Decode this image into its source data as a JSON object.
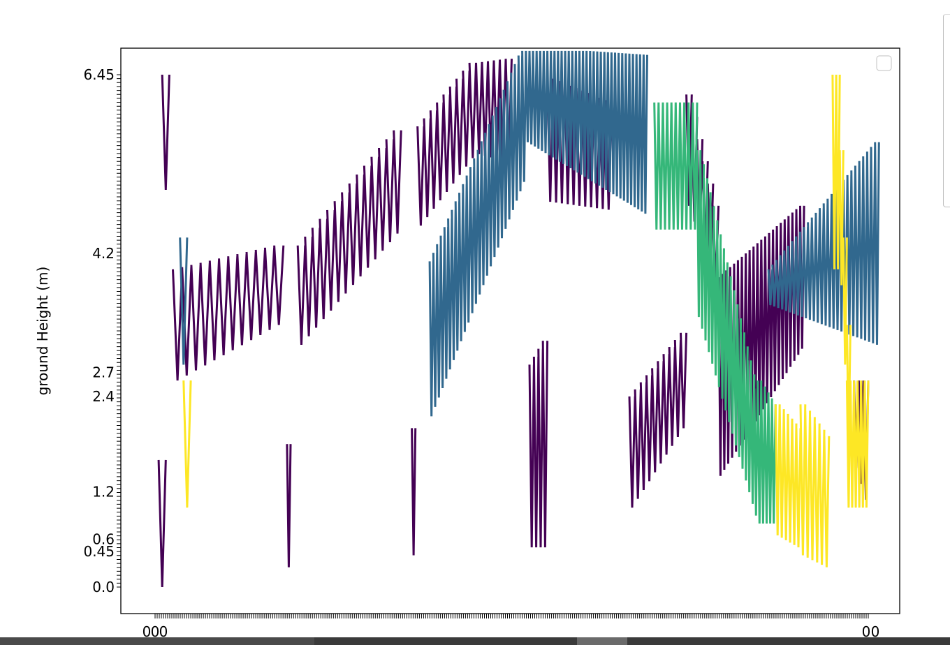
{
  "chart_data": {
    "type": "line",
    "title": "",
    "xlabel": "",
    "ylabel": "ground Height (m)",
    "legend": {
      "placement": "top-right",
      "entries": []
    },
    "grid": false,
    "xlim": [
      0,
      1000
    ],
    "ylim": [
      -0.2,
      6.75
    ],
    "x_tick_labels": [
      "0",
      "0",
      "0",
      "0",
      "0"
    ],
    "y_tick_labels_legible": [
      "6.45",
      "4.2",
      "2.7",
      "2.4",
      "1.2",
      "0.6",
      "0.45",
      "0.0"
    ],
    "colors": {
      "purple": "#440154",
      "teal": "#31688e",
      "green": "#35b779",
      "yellow": "#fde725"
    },
    "series": [
      {
        "color": "#440154",
        "segments": [
          {
            "x0": 5,
            "x1": 15,
            "top": 1.6,
            "bottom": 0.0,
            "n": 1
          },
          {
            "x0": 10,
            "x1": 20,
            "top": 6.45,
            "bottom": 5.0,
            "n": 1
          },
          {
            "x0": 25,
            "x1": 180,
            "top": [
              4.0,
              4.3
            ],
            "bottom": [
              2.6,
              3.3
            ],
            "n": 12
          },
          {
            "x0": 185,
            "x1": 190,
            "top": 1.8,
            "bottom": 0.25,
            "n": 1
          },
          {
            "x0": 200,
            "x1": 345,
            "top": [
              4.3,
              5.75
            ],
            "bottom": [
              3.05,
              4.45
            ],
            "n": 14
          },
          {
            "x0": 360,
            "x1": 365,
            "top": 2.0,
            "bottom": 0.4,
            "n": 1
          },
          {
            "x0": 368,
            "x1": 450,
            "top": [
              5.8,
              6.6
            ],
            "bottom": [
              4.55,
              5.4
            ],
            "n": 9
          },
          {
            "x0": 450,
            "x1": 500,
            "top": [
              6.6,
              6.65
            ],
            "bottom": [
              5.45,
              5.35
            ],
            "n": 6
          },
          {
            "x0": 525,
            "x1": 550,
            "top": [
              2.8,
              3.1
            ],
            "bottom": 0.5,
            "n": 4
          },
          {
            "x0": 550,
            "x1": 640,
            "top": [
              6.4,
              6.1
            ],
            "bottom": [
              4.85,
              4.75
            ],
            "n": 11
          },
          {
            "x0": 665,
            "x1": 745,
            "top": [
              2.4,
              3.2
            ],
            "bottom": [
              1.0,
              2.0
            ],
            "n": 10
          },
          {
            "x0": 745,
            "x1": 790,
            "top": [
              6.2,
              4.8
            ],
            "bottom": [
              4.8,
              3.8
            ],
            "n": 6
          },
          {
            "x0": 790,
            "x1": 910,
            "top": [
              3.9,
              4.8
            ],
            "bottom": [
              1.4,
              3.0
            ],
            "n": 22
          },
          {
            "x0": 980,
            "x1": 1000,
            "top": 2.6,
            "bottom": [
              1.5,
              1.1
            ],
            "n": 3
          }
        ]
      },
      {
        "color": "#31688e",
        "segments": [
          {
            "x0": 35,
            "x1": 45,
            "top": 4.4,
            "bottom": 2.8,
            "n": 1
          },
          {
            "x0": 385,
            "x1": 520,
            "top": [
              4.1,
              6.8
            ],
            "bottom": [
              2.15,
              5.1
            ],
            "n": 26
          },
          {
            "x0": 520,
            "x1": 690,
            "top": [
              6.8,
              6.7
            ],
            "bottom": [
              5.6,
              4.7
            ],
            "n": 34
          },
          {
            "x0": 860,
            "x1": 1015,
            "top": [
              4.0,
              5.6
            ],
            "bottom": [
              3.55,
              3.05
            ],
            "n": 28
          }
        ]
      },
      {
        "color": "#35b779",
        "segments": [
          {
            "x0": 700,
            "x1": 760,
            "top": 6.1,
            "bottom": 4.5,
            "n": 10
          },
          {
            "x0": 760,
            "x1": 845,
            "top": [
              5.5,
              2.5
            ],
            "bottom": [
              3.4,
              0.9
            ],
            "n": 18
          },
          {
            "x0": 845,
            "x1": 870,
            "top": [
              2.6,
              2.3
            ],
            "bottom": 0.8,
            "n": 5
          }
        ]
      },
      {
        "color": "#fde725",
        "segments": [
          {
            "x0": 40,
            "x1": 50,
            "top": 2.6,
            "bottom": 1.0,
            "n": 1
          },
          {
            "x0": 870,
            "x1": 905,
            "top": [
              2.3,
              2.0
            ],
            "bottom": [
              0.65,
              0.5
            ],
            "n": 6
          },
          {
            "x0": 905,
            "x1": 945,
            "top": [
              2.3,
              1.9
            ],
            "bottom": [
              0.4,
              0.25
            ],
            "n": 6
          },
          {
            "x0": 950,
            "x1": 960,
            "top": 6.45,
            "bottom": 4.0,
            "n": 2
          },
          {
            "x0": 960,
            "x1": 975,
            "top": [
              5.5,
              3.3
            ],
            "bottom": [
              3.8,
              1.8
            ],
            "n": 3
          },
          {
            "x0": 970,
            "x1": 1000,
            "top": 2.6,
            "bottom": 1.0,
            "n": 6
          }
        ]
      }
    ]
  },
  "ui": {
    "scrollbar_color": "#3a3a3a"
  }
}
